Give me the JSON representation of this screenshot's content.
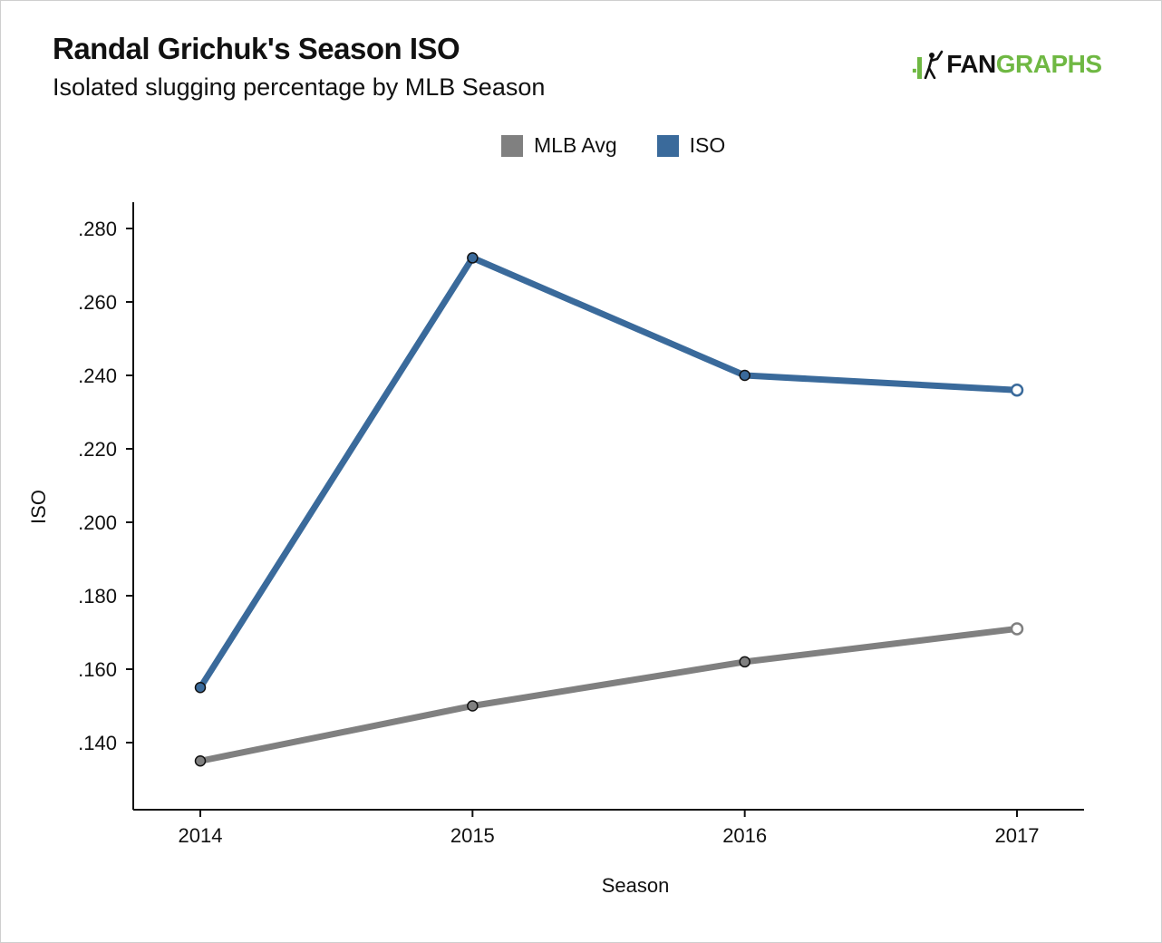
{
  "header": {
    "title": "Randal Grichuk's Season ISO",
    "subtitle": "Isolated slugging percentage by MLB Season"
  },
  "logo": {
    "prefix": ".",
    "fan": "FAN",
    "graphs": "GRAPHS",
    "icon": "batter-icon"
  },
  "colors": {
    "iso": "#3a6a9b",
    "mlb_avg": "#808080",
    "logo_green": "#6fb843"
  },
  "chart_data": {
    "type": "line",
    "xlabel": "Season",
    "ylabel": "ISO",
    "categories": [
      "2014",
      "2015",
      "2016",
      "2017"
    ],
    "ylim": [
      0.122,
      0.285
    ],
    "yticks": [
      0.14,
      0.16,
      0.18,
      0.2,
      0.22,
      0.24,
      0.26,
      0.28
    ],
    "ytick_labels": [
      ".140",
      ".160",
      ".180",
      ".200",
      ".220",
      ".240",
      ".260",
      ".280"
    ],
    "grid": false,
    "legend_position": "top-center",
    "series": [
      {
        "name": "MLB Avg",
        "color": "#808080",
        "values": [
          0.135,
          0.15,
          0.162,
          0.171
        ],
        "hollow_last_point": true
      },
      {
        "name": "ISO",
        "color": "#3a6a9b",
        "values": [
          0.155,
          0.272,
          0.24,
          0.236
        ],
        "hollow_last_point": true
      }
    ]
  }
}
